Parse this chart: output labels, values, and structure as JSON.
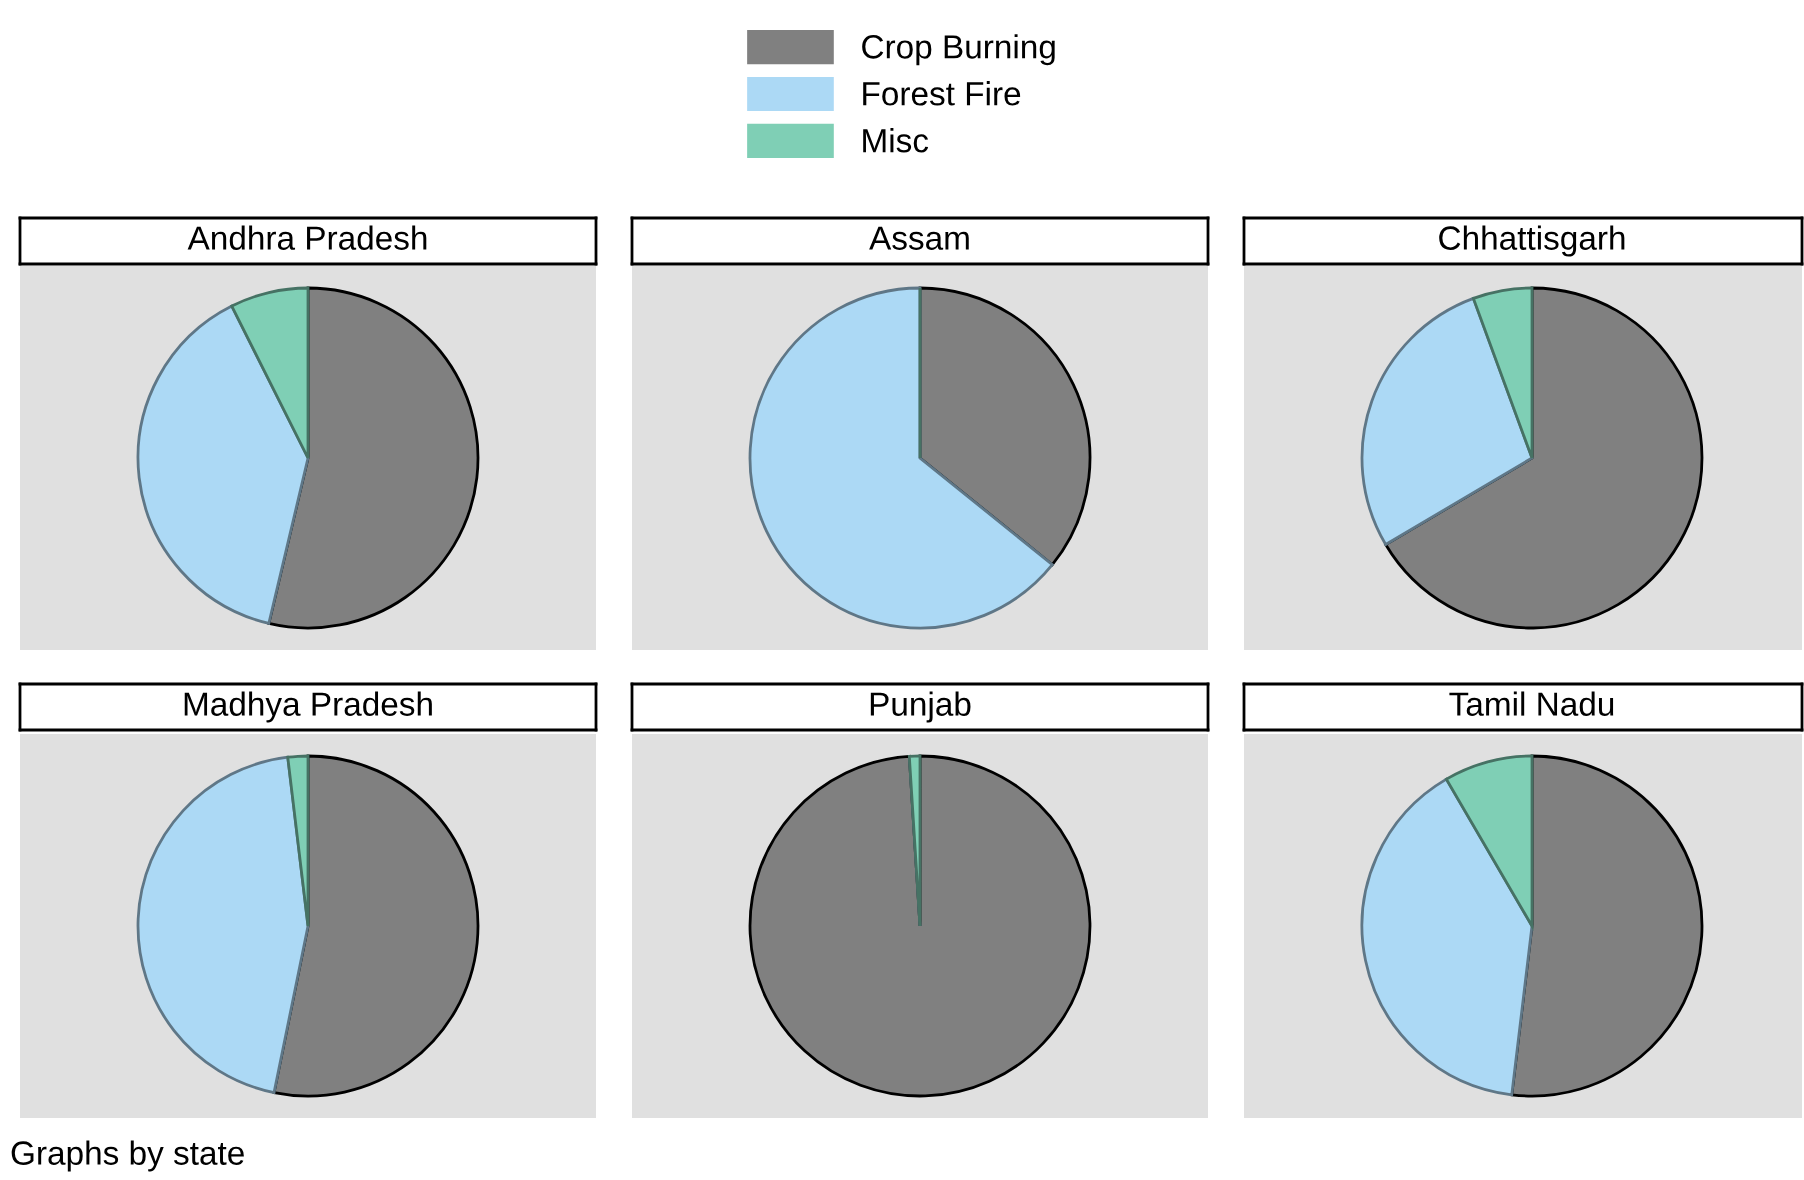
{
  "chart_data": [
    {
      "type": "pie",
      "title": "Andhra Pradesh",
      "categories": [
        "Crop Burning",
        "Forest Fire",
        "Misc"
      ],
      "values": [
        53.7,
        38.9,
        7.4
      ],
      "colors": [
        "#808080",
        "#acd9f5",
        "#7fcfb5"
      ],
      "legend": "top"
    },
    {
      "type": "pie",
      "title": "Assam",
      "values": [
        35.8,
        64.2,
        0
      ],
      "colors": [
        "#808080",
        "#acd9f5",
        "#7fcfb5"
      ]
    },
    {
      "type": "pie",
      "title": "Chhattisgarh",
      "values": [
        66.5,
        27.9,
        5.6
      ],
      "colors": [
        "#808080",
        "#acd9f5",
        "#7fcfb5"
      ]
    },
    {
      "type": "pie",
      "title": "Madhya Pradesh",
      "values": [
        53.2,
        44.9,
        1.9
      ],
      "colors": [
        "#808080",
        "#acd9f5",
        "#7fcfb5"
      ]
    },
    {
      "type": "pie",
      "title": "Punjab",
      "values": [
        99.0,
        0,
        1.0
      ],
      "colors": [
        "#808080",
        "#acd9f5",
        "#7fcfb5"
      ]
    },
    {
      "type": "pie",
      "title": "Tamil Nadu",
      "values": [
        51.9,
        39.7,
        8.4
      ],
      "colors": [
        "#808080",
        "#acd9f5",
        "#7fcfb5"
      ],
      "annotations": [
        "Graphs by state"
      ]
    }
  ]
}
